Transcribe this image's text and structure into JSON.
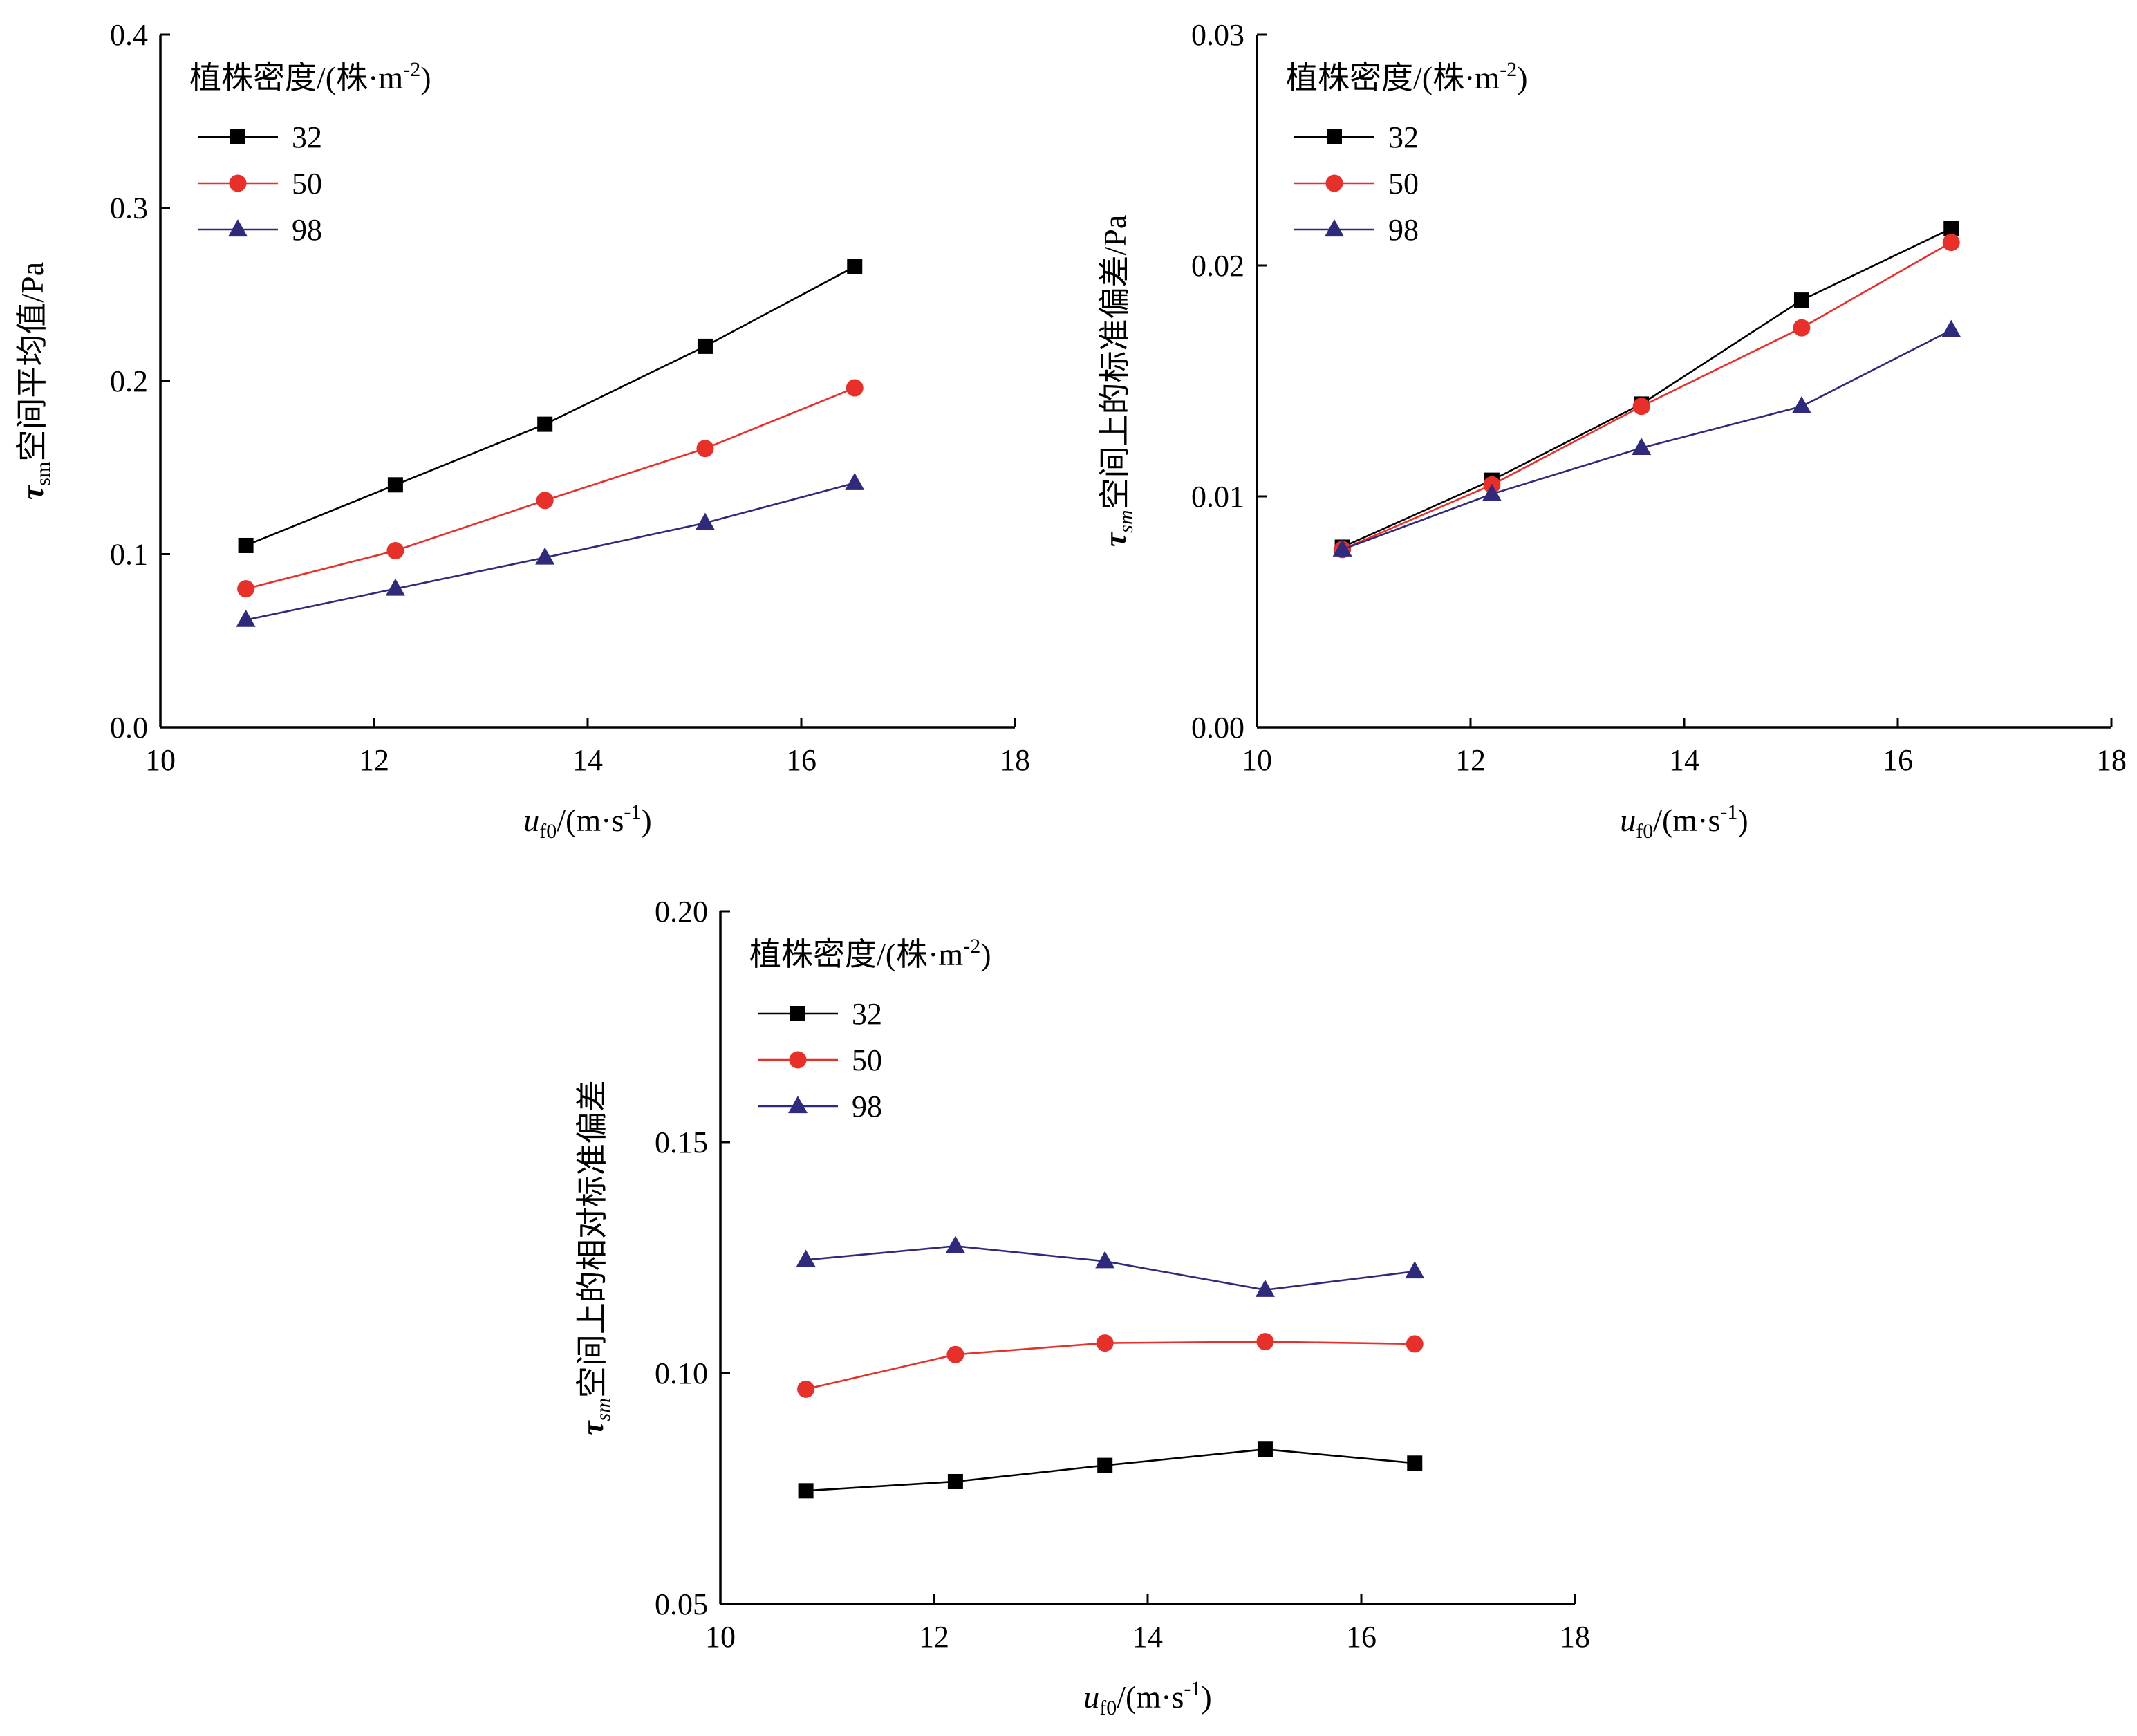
{
  "colors": {
    "s32": "#000000",
    "s50": "#e8302a",
    "s98": "#2f2a7c"
  },
  "legend": {
    "title": "植株密度/(株·m",
    "title_sup": "-2",
    "title_end": ")",
    "entries": [
      "32",
      "50",
      "98"
    ]
  },
  "chart_data": [
    {
      "type": "line",
      "ylabel_symbol": "τ",
      "ylabel_sub": "sm",
      "ylabel_text": "空间平均值/Pa",
      "xlabel_symbol": "u",
      "xlabel_sub": "f0",
      "xlabel_text": "/(m·s",
      "xlabel_sup": "-1",
      "xlabel_end": ")",
      "xlim": [
        10,
        18
      ],
      "ylim": [
        0,
        0.4
      ],
      "xticks": [
        "10",
        "12",
        "14",
        "16",
        "18"
      ],
      "yticks": [
        "0.0",
        "0.1",
        "0.2",
        "0.3",
        "0.4"
      ],
      "x": [
        10.8,
        12.2,
        13.6,
        15.1,
        16.5
      ],
      "series": [
        {
          "name": "32",
          "marker": "square",
          "values": [
            0.105,
            0.14,
            0.175,
            0.22,
            0.266
          ]
        },
        {
          "name": "50",
          "marker": "circle",
          "values": [
            0.08,
            0.102,
            0.131,
            0.161,
            0.196
          ]
        },
        {
          "name": "98",
          "marker": "triangle",
          "values": [
            0.062,
            0.08,
            0.098,
            0.118,
            0.141
          ]
        }
      ]
    },
    {
      "type": "line",
      "ylabel_symbol": "τ",
      "ylabel_sub": "sm",
      "ylabel_text": "空间上的标准偏差/Pa",
      "xlabel_symbol": "u",
      "xlabel_sub": "f0",
      "xlabel_text": "/(m·s",
      "xlabel_sup": "-1",
      "xlabel_end": ")",
      "xlim": [
        10,
        18
      ],
      "ylim": [
        0,
        0.03
      ],
      "xticks": [
        "10",
        "12",
        "14",
        "16",
        "18"
      ],
      "yticks": [
        "0.00",
        "0.01",
        "0.02",
        "0.03"
      ],
      "x": [
        10.8,
        12.2,
        13.6,
        15.1,
        16.5
      ],
      "series": [
        {
          "name": "32",
          "marker": "square",
          "values": [
            0.0078,
            0.0107,
            0.014,
            0.0185,
            0.0216
          ]
        },
        {
          "name": "50",
          "marker": "circle",
          "values": [
            0.0077,
            0.0105,
            0.0139,
            0.0173,
            0.021
          ]
        },
        {
          "name": "98",
          "marker": "triangle",
          "values": [
            0.0077,
            0.0101,
            0.0121,
            0.0139,
            0.0172
          ]
        }
      ]
    },
    {
      "type": "line",
      "ylabel_symbol": "τ",
      "ylabel_sub": "sm",
      "ylabel_text": "空间上的相对标准偏差",
      "xlabel_symbol": "u",
      "xlabel_sub": "f0",
      "xlabel_text": "/(m·s",
      "xlabel_sup": "-1",
      "xlabel_end": ")",
      "xlim": [
        10,
        18
      ],
      "ylim": [
        0.05,
        0.2
      ],
      "xticks": [
        "10",
        "12",
        "14",
        "16",
        "18"
      ],
      "yticks": [
        "0.05",
        "0.10",
        "0.15",
        "0.20"
      ],
      "x": [
        10.8,
        12.2,
        13.6,
        15.1,
        16.5
      ],
      "series": [
        {
          "name": "32",
          "marker": "square",
          "values": [
            0.0745,
            0.0765,
            0.08,
            0.0835,
            0.0805
          ]
        },
        {
          "name": "50",
          "marker": "circle",
          "values": [
            0.0965,
            0.104,
            0.1065,
            0.1068,
            0.1063
          ]
        },
        {
          "name": "98",
          "marker": "triangle",
          "values": [
            0.1245,
            0.1275,
            0.1242,
            0.118,
            0.122
          ]
        }
      ]
    }
  ]
}
